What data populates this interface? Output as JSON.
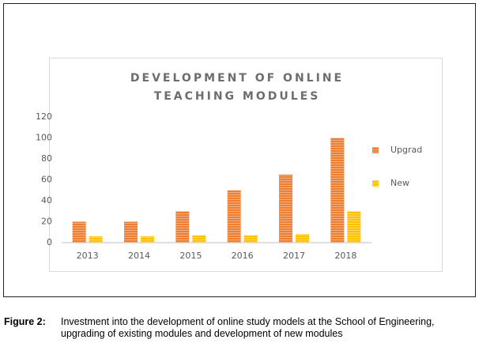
{
  "chart_data": {
    "type": "bar",
    "title": "DEVELOPMENT OF ONLINE TEACHING MODULES",
    "categories": [
      "2013",
      "2014",
      "2015",
      "2016",
      "2017",
      "2018"
    ],
    "series": [
      {
        "name": "Upgrad",
        "color": "#ed7d31",
        "values": [
          20,
          20,
          30,
          50,
          65,
          100
        ]
      },
      {
        "name": "New",
        "color": "#ffc000",
        "values": [
          6,
          6,
          7,
          7,
          8,
          30
        ]
      }
    ],
    "ylim": [
      0,
      120
    ],
    "yticks": [
      0,
      20,
      40,
      60,
      80,
      100,
      120
    ],
    "grid": false,
    "legend": "right"
  },
  "caption": {
    "label": "Figure 2:",
    "text": "Investment into the development of online study models at the School of Engineering, upgrading of existing modules and development of new modules"
  }
}
